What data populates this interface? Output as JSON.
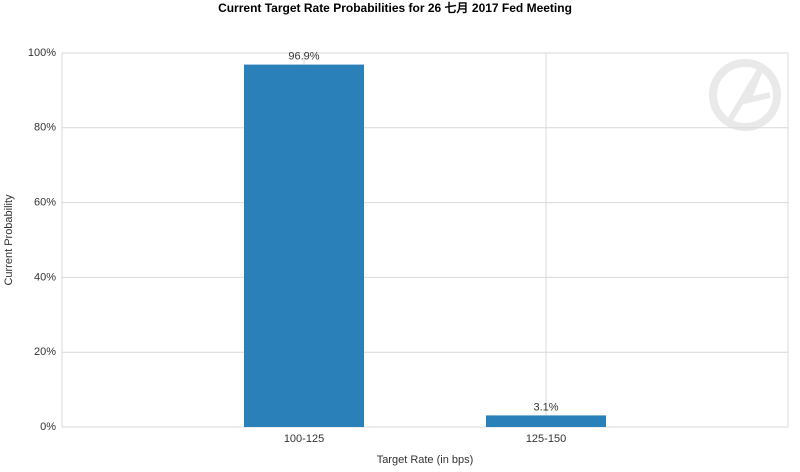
{
  "chart_data": {
    "type": "bar",
    "title": "Current Target Rate Probabilities for 26 七月 2017  Fed Meeting",
    "x_label": "Target Rate (in bps)",
    "y_label": "Current Probability",
    "categories": [
      "100-125",
      "125-150"
    ],
    "values": [
      96.9,
      3.1
    ],
    "value_labels": [
      "96.9%",
      "3.1%"
    ],
    "color": "#2a80b9",
    "ylim": [
      0,
      100
    ],
    "yticks": [
      {
        "value": 0,
        "label": "0%"
      },
      {
        "value": 20,
        "label": "20%"
      },
      {
        "value": 40,
        "label": "40%"
      },
      {
        "value": 60,
        "label": "60%"
      },
      {
        "value": 80,
        "label": "80%"
      },
      {
        "value": 100,
        "label": "100%"
      }
    ],
    "grid": true
  }
}
